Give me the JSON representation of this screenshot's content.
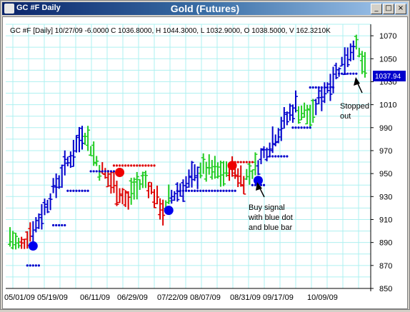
{
  "window": {
    "symbol_title": "GC #F Daily",
    "main_title": "Gold (Futures)",
    "minimize_glyph": "_",
    "maximize_glyph": "□",
    "close_glyph": "×"
  },
  "header": {
    "quote_line": "GC #F [Daily] 10/27/09  -6.0000 C 1036.8000, H 1044.3000, L 1032.9000, O 1038.5000, V 162.3210K"
  },
  "price_tag": {
    "label": "1037.94",
    "color": "#0000cc"
  },
  "annotations": {
    "stopped_out": [
      "Stopped",
      "out"
    ],
    "buy_signal": [
      "Buy signal",
      "with blue dot",
      "and blue bar"
    ]
  },
  "colors": {
    "up": "#0000cc",
    "neutral": "#22cc22",
    "down": "#dd0000",
    "grid": "#aef0f0",
    "signal_blue": "#0000ee",
    "signal_red": "#ee0000"
  },
  "chart_data": {
    "type": "bar",
    "subtype": "ohlc",
    "title": "Gold (Futures)",
    "ylim": [
      850,
      1080
    ],
    "y_ticks": [
      850,
      870,
      890,
      910,
      930,
      950,
      970,
      990,
      1010,
      1030,
      1050,
      1070
    ],
    "x_tick_labels": [
      "05/01/09",
      "05/19/09",
      "06/11/09",
      "06/29/09",
      "07/22/09",
      "08/07/09",
      "08/31/09",
      "09/17/09",
      "10/09/09"
    ],
    "grid": true,
    "bar_count": 124,
    "segments": [
      {
        "from": 0,
        "to": 4,
        "start": 895,
        "end": 888,
        "color": "neutral"
      },
      {
        "from": 4,
        "to": 8,
        "start": 888,
        "end": 900,
        "color": "down"
      },
      {
        "from": 8,
        "to": 26,
        "start": 900,
        "end": 985,
        "color": "up"
      },
      {
        "from": 26,
        "to": 32,
        "start": 985,
        "end": 955,
        "color": "neutral"
      },
      {
        "from": 32,
        "to": 42,
        "start": 952,
        "end": 925,
        "color": "down"
      },
      {
        "from": 42,
        "to": 48,
        "start": 935,
        "end": 945,
        "color": "neutral"
      },
      {
        "from": 48,
        "to": 54,
        "start": 940,
        "end": 918,
        "color": "down"
      },
      {
        "from": 54,
        "to": 56,
        "start": 918,
        "end": 928,
        "color": "neutral"
      },
      {
        "from": 56,
        "to": 66,
        "start": 930,
        "end": 950,
        "color": "up"
      },
      {
        "from": 66,
        "to": 76,
        "start": 955,
        "end": 950,
        "color": "neutral"
      },
      {
        "from": 76,
        "to": 82,
        "start": 955,
        "end": 945,
        "color": "down"
      },
      {
        "from": 82,
        "to": 86,
        "start": 948,
        "end": 955,
        "color": "neutral"
      },
      {
        "from": 86,
        "to": 100,
        "start": 960,
        "end": 1010,
        "color": "up"
      },
      {
        "from": 100,
        "to": 106,
        "start": 1005,
        "end": 1000,
        "color": "neutral"
      },
      {
        "from": 106,
        "to": 120,
        "start": 1010,
        "end": 1062,
        "color": "up"
      },
      {
        "from": 120,
        "to": 124,
        "start": 1060,
        "end": 1040,
        "color": "neutral"
      }
    ],
    "stop_dots": [
      {
        "from": 6,
        "to": 10,
        "y": 870
      },
      {
        "from": 15,
        "to": 19,
        "y": 905
      },
      {
        "from": 20,
        "to": 27,
        "y": 935
      },
      {
        "from": 28,
        "to": 36,
        "y": 952
      },
      {
        "from": 36,
        "to": 50,
        "y": 957,
        "color": "down"
      },
      {
        "from": 58,
        "to": 64,
        "y": 935
      },
      {
        "from": 64,
        "to": 78,
        "y": 935
      },
      {
        "from": 78,
        "to": 84,
        "y": 960,
        "color": "down"
      },
      {
        "from": 84,
        "to": 88,
        "y": 940
      },
      {
        "from": 90,
        "to": 96,
        "y": 965
      },
      {
        "from": 98,
        "to": 104,
        "y": 990
      },
      {
        "from": 104,
        "to": 112,
        "y": 1025
      },
      {
        "from": 114,
        "to": 120,
        "y": 1037
      }
    ],
    "signal_dots": [
      {
        "x": 8,
        "y": 887,
        "color": "blue"
      },
      {
        "x": 38,
        "y": 951,
        "color": "red"
      },
      {
        "x": 55,
        "y": 918,
        "color": "blue"
      },
      {
        "x": 77,
        "y": 957,
        "color": "red"
      },
      {
        "x": 86,
        "y": 944,
        "color": "blue"
      }
    ]
  }
}
